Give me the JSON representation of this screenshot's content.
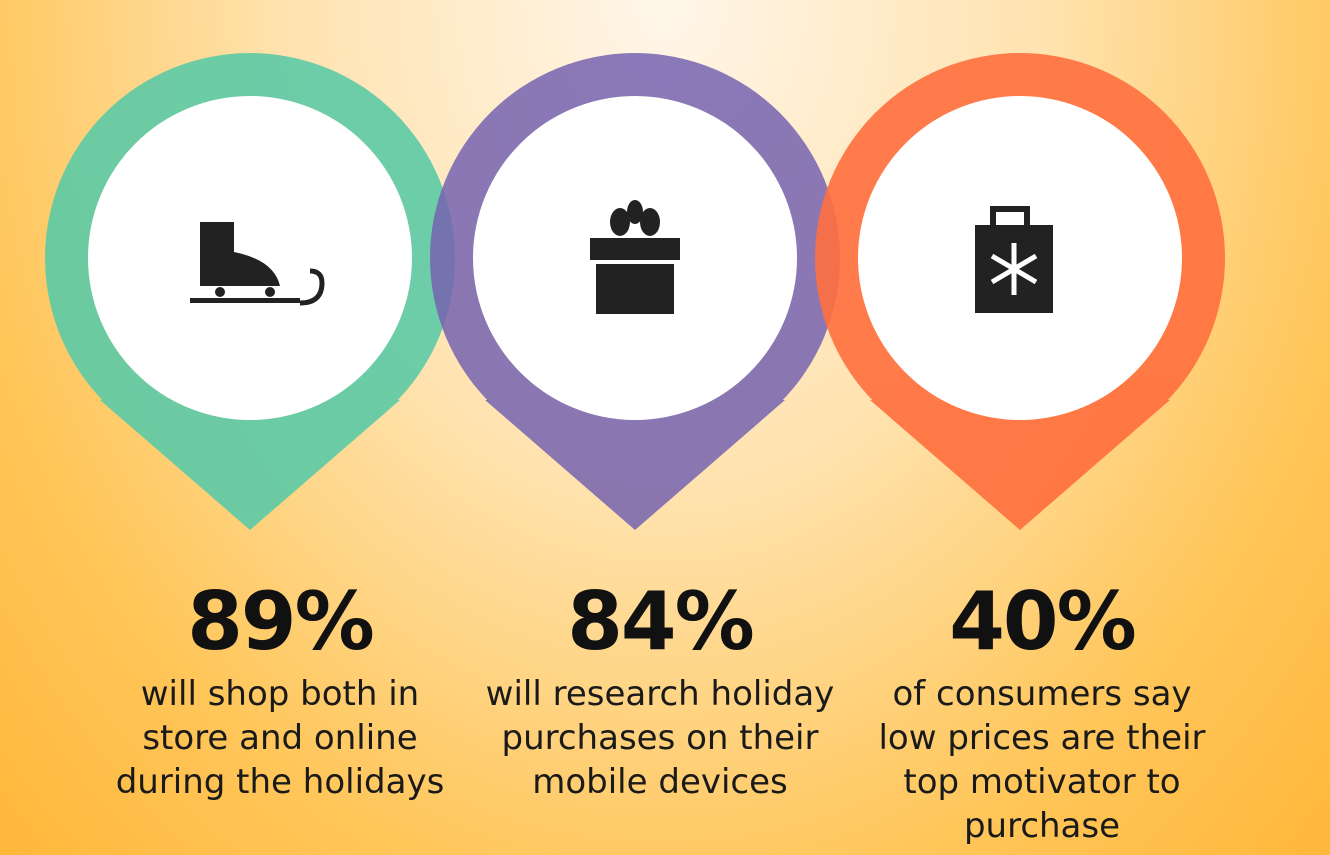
{
  "stats": [
    {
      "value": "89%",
      "description": [
        "will shop both in",
        "store and online",
        "during the holidays"
      ]
    },
    {
      "value": "84%",
      "description": [
        "will research holiday",
        "purchases on their",
        "mobile devices"
      ]
    },
    {
      "value": "40%",
      "description": [
        "of consumers say",
        "low prices are their",
        "top motivator to",
        "purchase"
      ]
    }
  ]
}
